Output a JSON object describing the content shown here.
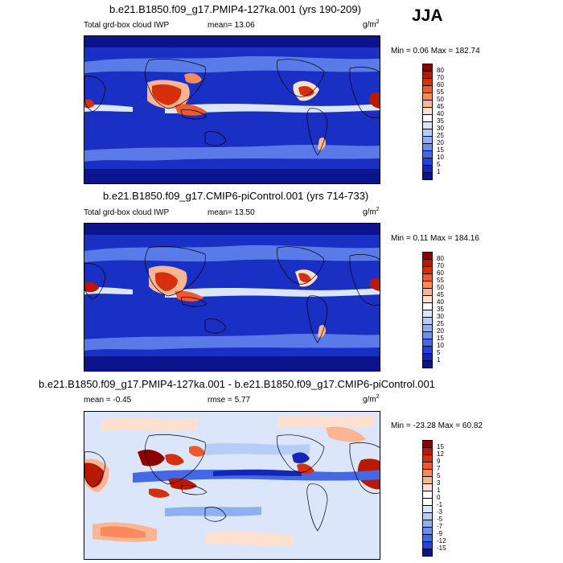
{
  "season": "JJA",
  "panels": [
    {
      "id": "pmip4",
      "title": "b.e21.B1850.f09_g17.PMIP4-127ka.001 (yrs 190-209)",
      "left_label": "Total grd-box cloud IWP",
      "stat_label": "mean=  13.06",
      "units_base": "g/m",
      "units_exp": "2",
      "minmax": "Min =   0.06 Max = 182.74",
      "colorbar": {
        "labels": [
          "80",
          "70",
          "60",
          "55",
          "50",
          "45",
          "40",
          "35",
          "30",
          "25",
          "20",
          "15",
          "10",
          "5",
          "1"
        ],
        "colors": [
          "#8b0000",
          "#b81a00",
          "#d62f0c",
          "#ec5a2e",
          "#f88a5e",
          "#fcb593",
          "#fde0cf",
          "#ffffff",
          "#dbe6fb",
          "#b6cdf7",
          "#8fb0f0",
          "#6a8ef0",
          "#4569e6",
          "#2843d2",
          "#1426b4",
          "#0b148c"
        ]
      }
    },
    {
      "id": "picontrol",
      "title": "b.e21.B1850.f09_g17.CMIP6-piControl.001 (yrs 714-733)",
      "left_label": "Total grd-box cloud IWP",
      "stat_label": "mean=  13.50",
      "units_base": "g/m",
      "units_exp": "2",
      "minmax": "Min =   0.11 Max = 184.16",
      "colorbar": {
        "labels": [
          "80",
          "70",
          "60",
          "55",
          "50",
          "45",
          "40",
          "35",
          "30",
          "25",
          "20",
          "15",
          "10",
          "5",
          "1"
        ],
        "colors": [
          "#8b0000",
          "#b81a00",
          "#d62f0c",
          "#ec5a2e",
          "#f88a5e",
          "#fcb593",
          "#fde0cf",
          "#ffffff",
          "#dbe6fb",
          "#b6cdf7",
          "#8fb0f0",
          "#6a8ef0",
          "#4569e6",
          "#2843d2",
          "#1426b4",
          "#0b148c"
        ]
      }
    },
    {
      "id": "difference",
      "title": "b.e21.B1850.f09_g17.PMIP4-127ka.001 - b.e21.B1850.f09_g17.CMIP6-piControl.001",
      "left_label": "mean =  -0.45",
      "stat_label": "rmse =   5.77",
      "units_base": "g/m",
      "units_exp": "2",
      "minmax": "Min = -23.28 Max =  60.82",
      "colorbar": {
        "labels": [
          "15",
          "12",
          "9",
          "7",
          "5",
          "3",
          "1",
          "0",
          "-1",
          "-3",
          "-5",
          "-7",
          "-9",
          "-12",
          "-15"
        ],
        "colors": [
          "#8b0000",
          "#b81a00",
          "#d62f0c",
          "#ec5a2e",
          "#f88a5e",
          "#fcb593",
          "#fde0cf",
          "#ffffff",
          "#ffffff",
          "#dbe6fb",
          "#b6cdf7",
          "#8fb0f0",
          "#6a8ef0",
          "#4569e6",
          "#2843d2",
          "#0b148c"
        ]
      }
    }
  ]
}
